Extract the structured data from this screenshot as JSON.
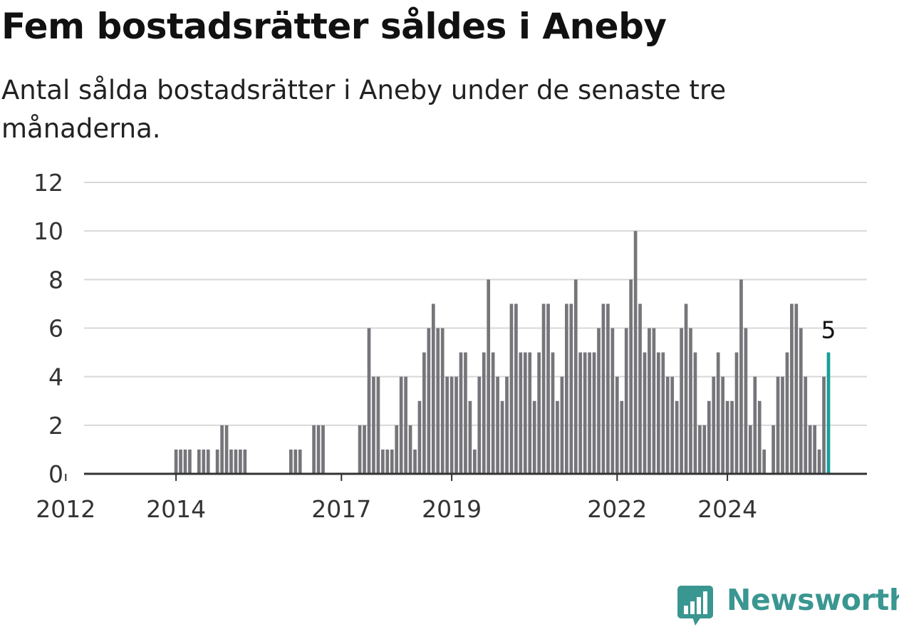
{
  "chart_data": {
    "type": "bar",
    "title": "Fem bostadsrätter såldes i Aneby",
    "subtitle": "Antal sålda bostadsrätter i Aneby under de senaste tre månaderna.",
    "xlabel": "",
    "ylabel": "",
    "ylim": [
      0,
      12
    ],
    "yticks": [
      0,
      2,
      4,
      6,
      8,
      10,
      12
    ],
    "x_tick_labels": [
      "2012",
      "2014",
      "2017",
      "2019",
      "2022",
      "2024"
    ],
    "grid": true,
    "colors": {
      "bars": "#76757a",
      "highlight": "#1a9e98",
      "grid": "#d8d8d8",
      "axis": "#333333"
    },
    "highlight_label": "5",
    "series": [
      {
        "values": [
          0,
          0,
          0,
          0,
          0,
          0,
          0,
          0,
          0,
          0,
          0,
          0,
          0,
          0,
          0,
          0,
          0,
          0,
          0,
          0,
          0,
          0,
          0,
          0,
          1,
          1,
          1,
          1,
          0,
          1,
          1,
          1,
          0,
          1,
          2,
          2,
          1,
          1,
          1,
          1,
          0,
          0,
          0,
          0,
          0,
          0,
          0,
          0,
          0,
          1,
          1,
          1,
          0,
          0,
          2,
          2,
          2,
          0,
          0,
          0,
          0,
          0,
          0,
          0,
          2,
          2,
          6,
          4,
          4,
          1,
          1,
          1,
          2,
          4,
          4,
          2,
          1,
          3,
          5,
          6,
          7,
          6,
          6,
          4,
          4,
          4,
          5,
          5,
          3,
          1,
          4,
          5,
          8,
          5,
          4,
          3,
          4,
          7,
          7,
          5,
          5,
          5,
          3,
          5,
          7,
          7,
          5,
          3,
          4,
          7,
          7,
          8,
          5,
          5,
          5,
          5,
          6,
          7,
          7,
          6,
          4,
          3,
          6,
          8,
          10,
          7,
          5,
          6,
          6,
          5,
          5,
          4,
          4,
          3,
          6,
          7,
          6,
          5,
          2,
          2,
          3,
          4,
          5,
          4,
          3,
          3,
          5,
          8,
          6,
          2,
          4,
          3,
          1,
          0,
          2,
          4,
          4,
          5,
          7,
          7,
          6,
          4,
          2,
          2,
          1,
          4,
          5
        ]
      }
    ]
  },
  "brand": {
    "name": "Newsworthy"
  }
}
